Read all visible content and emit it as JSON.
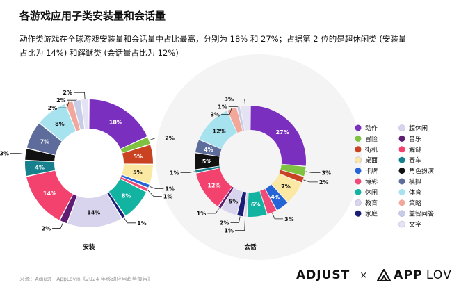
{
  "header": {
    "title": "各游戏应用子类安装量和会话量",
    "subtitle": "动作类游戏在全球游戏安装量和会话量中占比最高，分别为 18% 和 27%；占据第 2 位的是超休闲类 (安装量占比为 14%) 和解谜类 (会话量占比为 12%)"
  },
  "footer": {
    "source": "来源：Adjust | AppLovin《2024 年移动应用趋势报告》",
    "brand_adjust": "ADJUST",
    "brand_times": "×",
    "brand_app": "APP",
    "brand_lovin": "LOVIN"
  },
  "colors": {
    "动作": "#7b2fbf",
    "冒险": "#7fc241",
    "街机": "#c94322",
    "桌面": "#fbe8a2",
    "卡牌": "#2464d6",
    "博彩": "#ef4a78",
    "休闲": "#13b3a1",
    "教育": "#d9d4ee",
    "家庭": "#1a1d75",
    "超休闲": "#d9d4ee",
    "音乐": "#5e1d73",
    "解谜": "#f4426e",
    "赛车": "#16808c",
    "角色扮演": "#111111",
    "模拟": "#5d6c9a",
    "体育": "#a7e2ef",
    "策略": "#f2a79a",
    "益智问答": "#c7cde6",
    "文字": "#e5e2f3"
  },
  "chart_data": [
    {
      "type": "pie",
      "caption": "安装",
      "slices": [
        {
          "category": "动作",
          "value": 18,
          "label": "18%"
        },
        {
          "category": "冒险",
          "value": 2,
          "label": "2%"
        },
        {
          "category": "街机",
          "value": 5,
          "label": "5%"
        },
        {
          "category": "桌面",
          "value": 5,
          "label": "5%"
        },
        {
          "category": "卡牌",
          "value": 1,
          "label": "1%"
        },
        {
          "category": "博彩",
          "value": 1,
          "label": "1%"
        },
        {
          "category": "休闲",
          "value": 8,
          "label": "8%"
        },
        {
          "category": "家庭",
          "value": 1,
          "label": "1%"
        },
        {
          "category": "超休闲",
          "value": 14,
          "label": "14%"
        },
        {
          "category": "音乐",
          "value": 2,
          "label": "2%"
        },
        {
          "category": "解谜",
          "value": 14,
          "label": "14%"
        },
        {
          "category": "赛车",
          "value": 4,
          "label": "4%"
        },
        {
          "category": "角色扮演",
          "value": 3,
          "label": "3%"
        },
        {
          "category": "模拟",
          "value": 7,
          "label": "7%"
        },
        {
          "category": "体育",
          "value": 8,
          "label": "8%"
        },
        {
          "category": "策略",
          "value": 2,
          "label": "2%"
        },
        {
          "category": "益智问答",
          "value": 2,
          "label": "2%"
        },
        {
          "category": "文字",
          "value": 2,
          "label": "2%"
        }
      ]
    },
    {
      "type": "pie",
      "caption": "会话",
      "slices": [
        {
          "category": "动作",
          "value": 27,
          "label": "27%"
        },
        {
          "category": "冒险",
          "value": 3,
          "label": "3%"
        },
        {
          "category": "街机",
          "value": 2,
          "label": "2%"
        },
        {
          "category": "桌面",
          "value": 7,
          "label": "7%"
        },
        {
          "category": "卡牌",
          "value": 4,
          "label": "4%"
        },
        {
          "category": "博彩",
          "value": 3,
          "label": "3%"
        },
        {
          "category": "休闲",
          "value": 6,
          "label": "6%"
        },
        {
          "category": "教育",
          "value": 1,
          "label": "1%"
        },
        {
          "category": "家庭",
          "value": 2,
          "label": "2%"
        },
        {
          "category": "超休闲",
          "value": 5,
          "label": "5%"
        },
        {
          "category": "音乐",
          "value": 1,
          "label": "1%"
        },
        {
          "category": "解谜",
          "value": 12,
          "label": "12%"
        },
        {
          "category": "赛车",
          "value": 1,
          "label": "1%"
        },
        {
          "category": "角色扮演",
          "value": 5,
          "label": "5%"
        },
        {
          "category": "模拟",
          "value": 4,
          "label": "4%"
        },
        {
          "category": "体育",
          "value": 12,
          "label": "12%"
        },
        {
          "category": "策略",
          "value": 3,
          "label": "3%"
        },
        {
          "category": "益智问答",
          "value": 1,
          "label": "1%"
        },
        {
          "category": "文字",
          "value": 3,
          "label": "3%"
        }
      ]
    }
  ],
  "legend": {
    "left": [
      "动作",
      "冒险",
      "街机",
      "桌面",
      "卡牌",
      "博彩",
      "休闲",
      "教育",
      "家庭"
    ],
    "right": [
      "超休闲",
      "音乐",
      "解谜",
      "赛车",
      "角色扮演",
      "模拟",
      "体育",
      "策略",
      "益智问答",
      "文字"
    ]
  }
}
